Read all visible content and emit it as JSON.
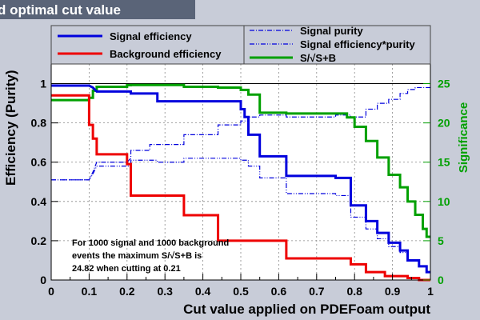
{
  "window": {
    "title": "d optimal cut value"
  },
  "annotation": {
    "lines": [
      "For 1000 signal and 1000 background",
      "events the maximum S/√S+B  is",
      "24.82 when cutting at 0.21"
    ]
  },
  "colors": {
    "signal_efficiency": "#0000dd",
    "background_efficiency": "#ee0000",
    "signal_purity": "#0000dd",
    "signal_eff_purity": "#0000dd",
    "significance": "#00a000",
    "plot_background": "#ffffff",
    "canvas_background": "#c8ccd8",
    "title_bar": "#5a6478",
    "right_axis_text": "#00a000"
  },
  "chart_data": {
    "type": "line",
    "xlabel": "Cut value applied on PDEFoam output",
    "ylabel": "Efficiency (Purity)",
    "y2label": "Significance",
    "xlim": [
      0,
      1
    ],
    "ylim": [
      0,
      1.1
    ],
    "y2lim": [
      0,
      27.5
    ],
    "grid": true,
    "xticks": [
      "0",
      "0.1",
      "0.2",
      "0.3",
      "0.4",
      "0.5",
      "0.6",
      "0.7",
      "0.8",
      "0.9",
      "1"
    ],
    "yticks": [
      "0",
      "0.2",
      "0.4",
      "0.6",
      "0.8",
      "1"
    ],
    "y2ticks": [
      "0",
      "5",
      "10",
      "15",
      "20",
      "25"
    ],
    "legend_position": "top",
    "legend": [
      {
        "label": "Signal efficiency",
        "series": "sig_eff"
      },
      {
        "label": "Background efficiency",
        "series": "bkg_eff"
      },
      {
        "label": "Signal purity",
        "series": "purity"
      },
      {
        "label": "Signal efficiency*purity",
        "series": "eff_purity"
      },
      {
        "label": "S/√S+B",
        "series": "significance"
      }
    ],
    "series": [
      {
        "id": "sig_eff",
        "name": "Signal efficiency",
        "axis": "left",
        "style": "solid",
        "width": 3,
        "points": [
          [
            0,
            0.99
          ],
          [
            0.1,
            0.99
          ],
          [
            0.11,
            0.98
          ],
          [
            0.12,
            0.96
          ],
          [
            0.21,
            0.96
          ],
          [
            0.21,
            0.95
          ],
          [
            0.28,
            0.95
          ],
          [
            0.28,
            0.91
          ],
          [
            0.5,
            0.91
          ],
          [
            0.5,
            0.87
          ],
          [
            0.51,
            0.87
          ],
          [
            0.51,
            0.83
          ],
          [
            0.52,
            0.83
          ],
          [
            0.52,
            0.74
          ],
          [
            0.55,
            0.74
          ],
          [
            0.55,
            0.63
          ],
          [
            0.62,
            0.63
          ],
          [
            0.62,
            0.53
          ],
          [
            0.75,
            0.53
          ],
          [
            0.75,
            0.52
          ],
          [
            0.79,
            0.52
          ],
          [
            0.79,
            0.38
          ],
          [
            0.83,
            0.38
          ],
          [
            0.83,
            0.3
          ],
          [
            0.86,
            0.3
          ],
          [
            0.86,
            0.24
          ],
          [
            0.89,
            0.24
          ],
          [
            0.89,
            0.19
          ],
          [
            0.92,
            0.19
          ],
          [
            0.92,
            0.15
          ],
          [
            0.94,
            0.15
          ],
          [
            0.94,
            0.1
          ],
          [
            0.97,
            0.1
          ],
          [
            0.97,
            0.07
          ],
          [
            0.99,
            0.07
          ],
          [
            0.99,
            0.04
          ],
          [
            1.0,
            0.04
          ]
        ]
      },
      {
        "id": "bkg_eff",
        "name": "Background efficiency",
        "axis": "left",
        "style": "solid",
        "width": 3,
        "points": [
          [
            0,
            0.94
          ],
          [
            0.1,
            0.94
          ],
          [
            0.1,
            0.79
          ],
          [
            0.11,
            0.79
          ],
          [
            0.11,
            0.72
          ],
          [
            0.12,
            0.72
          ],
          [
            0.12,
            0.64
          ],
          [
            0.2,
            0.64
          ],
          [
            0.2,
            0.59
          ],
          [
            0.21,
            0.59
          ],
          [
            0.21,
            0.43
          ],
          [
            0.35,
            0.43
          ],
          [
            0.35,
            0.33
          ],
          [
            0.44,
            0.33
          ],
          [
            0.44,
            0.2
          ],
          [
            0.62,
            0.2
          ],
          [
            0.62,
            0.11
          ],
          [
            0.79,
            0.11
          ],
          [
            0.79,
            0.08
          ],
          [
            0.83,
            0.08
          ],
          [
            0.83,
            0.04
          ],
          [
            0.88,
            0.04
          ],
          [
            0.88,
            0.02
          ],
          [
            0.94,
            0.02
          ],
          [
            0.94,
            0.01
          ],
          [
            0.97,
            0.01
          ],
          [
            0.97,
            0.0
          ],
          [
            1.0,
            0.0
          ]
        ]
      },
      {
        "id": "purity",
        "name": "Signal purity",
        "axis": "left",
        "style": "dashdot",
        "width": 1.2,
        "points": [
          [
            0,
            0.51
          ],
          [
            0.1,
            0.51
          ],
          [
            0.11,
            0.55
          ],
          [
            0.12,
            0.6
          ],
          [
            0.2,
            0.6
          ],
          [
            0.21,
            0.62
          ],
          [
            0.21,
            0.66
          ],
          [
            0.26,
            0.66
          ],
          [
            0.26,
            0.69
          ],
          [
            0.35,
            0.69
          ],
          [
            0.35,
            0.74
          ],
          [
            0.44,
            0.74
          ],
          [
            0.44,
            0.79
          ],
          [
            0.5,
            0.79
          ],
          [
            0.5,
            0.81
          ],
          [
            0.52,
            0.81
          ],
          [
            0.52,
            0.83
          ],
          [
            0.55,
            0.83
          ],
          [
            0.55,
            0.84
          ],
          [
            0.62,
            0.84
          ],
          [
            0.62,
            0.83
          ],
          [
            0.75,
            0.83
          ],
          [
            0.75,
            0.84
          ],
          [
            0.79,
            0.84
          ],
          [
            0.79,
            0.83
          ],
          [
            0.83,
            0.83
          ],
          [
            0.83,
            0.87
          ],
          [
            0.86,
            0.87
          ],
          [
            0.86,
            0.9
          ],
          [
            0.89,
            0.9
          ],
          [
            0.89,
            0.92
          ],
          [
            0.92,
            0.92
          ],
          [
            0.92,
            0.95
          ],
          [
            0.94,
            0.95
          ],
          [
            0.94,
            0.97
          ],
          [
            0.96,
            0.97
          ],
          [
            0.96,
            0.98
          ],
          [
            1.0,
            0.98
          ]
        ]
      },
      {
        "id": "eff_purity",
        "name": "Signal efficiency*purity",
        "axis": "left",
        "style": "dashdot",
        "width": 1.2,
        "points": [
          [
            0,
            0.51
          ],
          [
            0.1,
            0.51
          ],
          [
            0.11,
            0.54
          ],
          [
            0.12,
            0.58
          ],
          [
            0.21,
            0.58
          ],
          [
            0.21,
            0.61
          ],
          [
            0.28,
            0.61
          ],
          [
            0.28,
            0.6
          ],
          [
            0.35,
            0.6
          ],
          [
            0.35,
            0.62
          ],
          [
            0.44,
            0.62
          ],
          [
            0.44,
            0.62
          ],
          [
            0.5,
            0.62
          ],
          [
            0.5,
            0.61
          ],
          [
            0.52,
            0.61
          ],
          [
            0.52,
            0.58
          ],
          [
            0.55,
            0.58
          ],
          [
            0.55,
            0.52
          ],
          [
            0.62,
            0.52
          ],
          [
            0.62,
            0.44
          ],
          [
            0.75,
            0.44
          ],
          [
            0.75,
            0.43
          ],
          [
            0.79,
            0.43
          ],
          [
            0.79,
            0.32
          ],
          [
            0.83,
            0.32
          ],
          [
            0.83,
            0.26
          ],
          [
            0.86,
            0.26
          ],
          [
            0.86,
            0.21
          ],
          [
            0.89,
            0.21
          ],
          [
            0.89,
            0.17
          ],
          [
            0.92,
            0.17
          ],
          [
            0.92,
            0.14
          ],
          [
            0.94,
            0.14
          ],
          [
            0.94,
            0.1
          ],
          [
            0.97,
            0.1
          ],
          [
            0.97,
            0.07
          ],
          [
            0.99,
            0.07
          ],
          [
            0.99,
            0.04
          ],
          [
            1.0,
            0.04
          ]
        ]
      },
      {
        "id": "significance",
        "name": "S/√S+B",
        "axis": "right",
        "style": "solid",
        "width": 3,
        "points": [
          [
            0,
            22.9
          ],
          [
            0.1,
            22.9
          ],
          [
            0.1,
            23.2
          ],
          [
            0.11,
            23.2
          ],
          [
            0.11,
            24.1
          ],
          [
            0.12,
            24.1
          ],
          [
            0.12,
            24.6
          ],
          [
            0.2,
            24.6
          ],
          [
            0.2,
            24.8
          ],
          [
            0.21,
            24.8
          ],
          [
            0.21,
            24.82
          ],
          [
            0.35,
            24.82
          ],
          [
            0.35,
            24.6
          ],
          [
            0.44,
            24.6
          ],
          [
            0.44,
            24.5
          ],
          [
            0.5,
            24.5
          ],
          [
            0.5,
            24.2
          ],
          [
            0.52,
            24.2
          ],
          [
            0.52,
            23.6
          ],
          [
            0.55,
            23.6
          ],
          [
            0.55,
            21.3
          ],
          [
            0.62,
            21.3
          ],
          [
            0.62,
            21.2
          ],
          [
            0.78,
            21.2
          ],
          [
            0.78,
            20.7
          ],
          [
            0.8,
            20.7
          ],
          [
            0.8,
            19.5
          ],
          [
            0.83,
            19.5
          ],
          [
            0.83,
            17.7
          ],
          [
            0.86,
            17.7
          ],
          [
            0.86,
            15.6
          ],
          [
            0.89,
            15.6
          ],
          [
            0.89,
            13.4
          ],
          [
            0.92,
            13.4
          ],
          [
            0.92,
            11.8
          ],
          [
            0.94,
            11.8
          ],
          [
            0.94,
            10.0
          ],
          [
            0.96,
            10.0
          ],
          [
            0.96,
            8.3
          ],
          [
            0.98,
            8.3
          ],
          [
            0.98,
            6.5
          ],
          [
            0.99,
            6.5
          ],
          [
            0.99,
            5.5
          ],
          [
            1.0,
            5.5
          ]
        ]
      }
    ]
  }
}
